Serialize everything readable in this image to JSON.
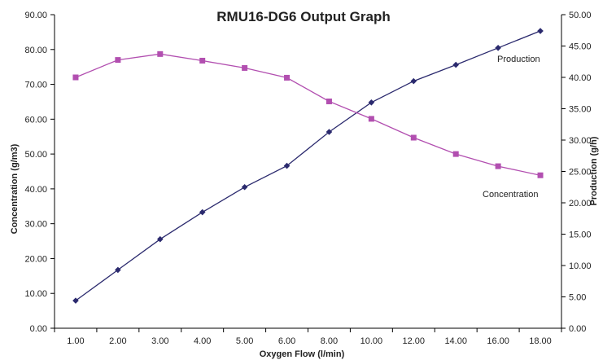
{
  "chart_data": {
    "type": "line",
    "title": "RMU16-DG6 Output Graph",
    "xlabel": "Oxygen Flow (l/min)",
    "ylabel_left": "Concentration (g/m3)",
    "ylabel_right": "Production (g/h)",
    "categories": [
      "1.00",
      "2.00",
      "3.00",
      "4.00",
      "5.00",
      "6.00",
      "8.00",
      "10.00",
      "12.00",
      "14.00",
      "16.00",
      "18.00"
    ],
    "y_left_ticks": [
      "0.00",
      "10.00",
      "20.00",
      "30.00",
      "40.00",
      "50.00",
      "60.00",
      "70.00",
      "80.00",
      "90.00"
    ],
    "y_right_ticks": [
      "0.00",
      "5.00",
      "10.00",
      "15.00",
      "20.00",
      "25.00",
      "30.00",
      "35.00",
      "40.00",
      "45.00",
      "50.00"
    ],
    "ylim_left": [
      0,
      90
    ],
    "ylim_right": [
      0,
      50
    ],
    "grid": false,
    "series": [
      {
        "name": "Production",
        "axis": "right",
        "color": "#2b2a6e",
        "marker": "diamond",
        "values": [
          4.4,
          9.3,
          14.2,
          18.5,
          22.5,
          25.9,
          31.3,
          36.0,
          39.4,
          42.0,
          44.7,
          47.4
        ]
      },
      {
        "name": "Concentration",
        "axis": "left",
        "color": "#b24fb0",
        "marker": "square",
        "values": [
          72.0,
          77.0,
          78.7,
          76.8,
          74.7,
          71.9,
          65.1,
          60.1,
          54.7,
          50.0,
          46.5,
          43.9
        ]
      }
    ]
  }
}
